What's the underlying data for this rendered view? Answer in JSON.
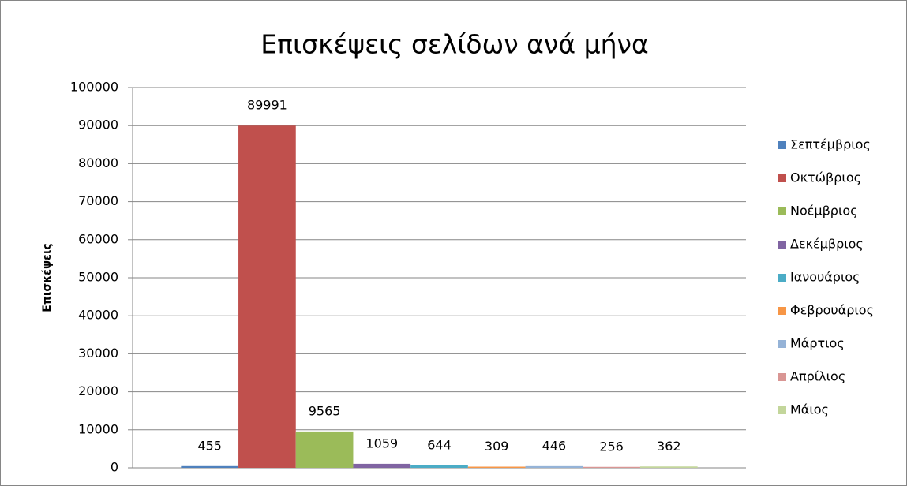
{
  "chart_data": {
    "type": "bar",
    "title": "Επισκέψεις σελίδων ανά μήνα",
    "y_label": "Επισκέψεις",
    "categories": [
      null
    ],
    "series": [
      {
        "name": "Σεπτέμβριος",
        "color": "#4F81BD",
        "values": [
          455
        ]
      },
      {
        "name": "Οκτώβριος",
        "color": "#C0504D",
        "values": [
          89991
        ]
      },
      {
        "name": "Νοέμβριος",
        "color": "#9BBB59",
        "values": [
          9565
        ]
      },
      {
        "name": "Δεκέμβριος",
        "color": "#8064A2",
        "values": [
          1059
        ]
      },
      {
        "name": "Ιανουάριος",
        "color": "#4BACC6",
        "values": [
          644
        ]
      },
      {
        "name": "Φεβρουάριος",
        "color": "#F79646",
        "values": [
          309
        ]
      },
      {
        "name": "Μάρτιος",
        "color": "#95B3D7",
        "values": [
          446
        ]
      },
      {
        "name": "Απρίλιος",
        "color": "#D99694",
        "values": [
          256
        ]
      },
      {
        "name": "Μάιος",
        "color": "#C3D69B",
        "values": [
          362
        ]
      }
    ],
    "ylim": [
      0,
      100000
    ],
    "yticks": [
      0,
      10000,
      20000,
      30000,
      40000,
      50000,
      60000,
      70000,
      80000,
      90000,
      100000
    ],
    "grid": true,
    "legend": "right"
  }
}
